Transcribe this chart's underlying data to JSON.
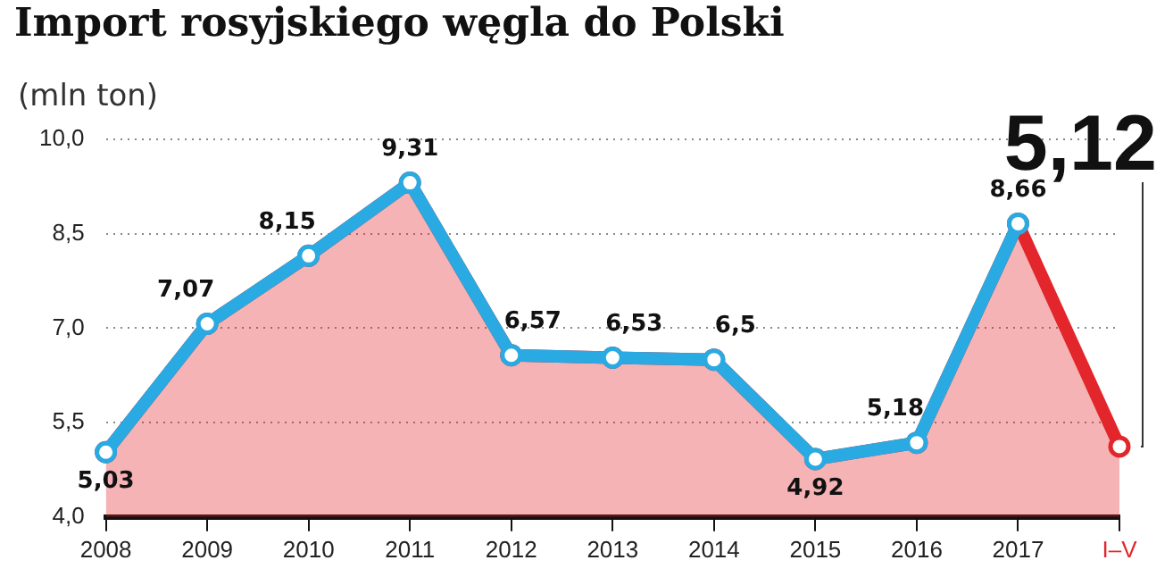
{
  "chart_data": {
    "type": "area",
    "title": "Import rosyjskiego węgla do Polski",
    "ylabel": "(mln ton)",
    "categories": [
      "2008",
      "2009",
      "2010",
      "2011",
      "2012",
      "2013",
      "2014",
      "2015",
      "2016",
      "2017",
      "I–V"
    ],
    "series": [
      {
        "color": "#e3262b",
        "values": [
          5.03,
          7.07,
          8.15,
          9.31,
          6.57,
          6.53,
          6.5,
          4.92,
          5.18,
          8.66,
          5.12
        ],
        "value_labels": [
          "5,03",
          "7,07",
          "8,15",
          "9,31",
          "6,57",
          "6,53",
          "6,5",
          "4,92",
          "5,18",
          "8,66",
          "5,12"
        ]
      },
      {
        "type": "line",
        "color": "#29aae2",
        "values": [
          5.03,
          7.07,
          8.15,
          9.31,
          6.57,
          6.53,
          6.5,
          4.92,
          5.18,
          8.66,
          null
        ]
      }
    ],
    "ylim": [
      4,
      10
    ],
    "yticks": [
      {
        "value": 4,
        "label": "4,0"
      },
      {
        "value": 5.5,
        "label": "5,5"
      },
      {
        "value": 7,
        "label": "7,0"
      },
      {
        "value": 8.5,
        "label": "8,5"
      },
      {
        "value": 10,
        "label": "10,0"
      }
    ],
    "grid": "y",
    "legend": false,
    "marker": "circle"
  }
}
